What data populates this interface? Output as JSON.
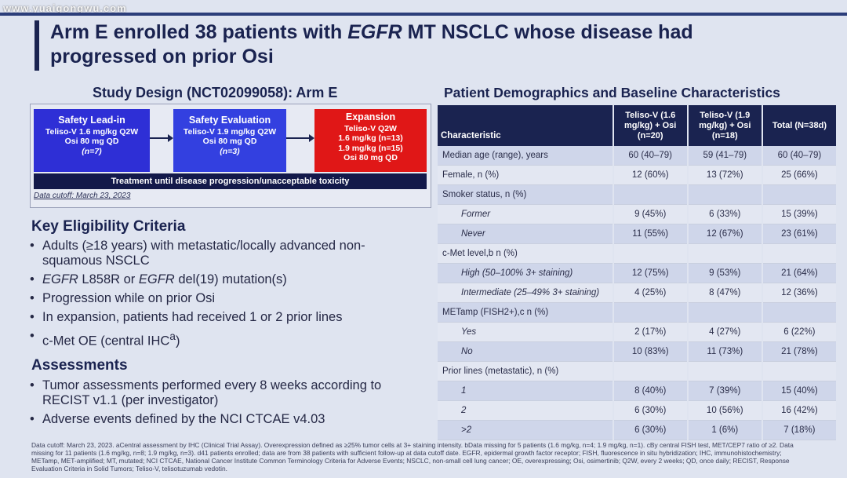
{
  "watermark": "www.yuaigongwu.com",
  "title": {
    "pre": "Arm E enrolled 38 patients with ",
    "gene": "EGFR",
    "post": " MT NSCLC whose disease had progressed on prior Osi"
  },
  "study_design": {
    "heading": "Study Design (NCT02099058): Arm E",
    "safety_lead_in": {
      "title": "Safety Lead-in",
      "line1": "Teliso-V 1.6 mg/kg Q2W",
      "line2": "Osi 80 mg QD",
      "n": "(n=7)"
    },
    "safety_evaluation": {
      "title": "Safety Evaluation",
      "line1": "Teliso-V 1.9 mg/kg Q2W",
      "line2": "Osi 80 mg QD",
      "n": "(n=3)"
    },
    "expansion": {
      "title": "Expansion",
      "line1": "Teliso-V Q2W",
      "line2": "1.6 mg/kg (n=13)",
      "line3": "1.9 mg/kg (n=15)",
      "line4": "Osi 80 mg QD"
    },
    "treatment_bar": "Treatment until disease progression/unacceptable toxicity",
    "data_cutoff": "Data cutoff: March 23, 2023",
    "colors": {
      "dark_navy": "#1a2350",
      "blue": "#2e2fd6",
      "red": "#e01717"
    }
  },
  "eligibility": {
    "heading": "Key Eligibility Criteria",
    "items": [
      {
        "text": "Adults (≥18 years) with metastatic/locally advanced non-squamous NSCLC"
      },
      {
        "g1": "EGFR",
        "t1": " L858R or ",
        "g2": "EGFR",
        "t2": " del(19) mutation(s)"
      },
      {
        "text": "Progression while on prior Osi"
      },
      {
        "text": "In expansion, patients had received 1 or 2 prior lines"
      },
      {
        "text": "c-Met OE (central IHC",
        "sup": "a",
        "close": ")"
      }
    ]
  },
  "assessments": {
    "heading": "Assessments",
    "items": [
      "Tumor assessments performed every 8 weeks according to RECIST v1.1 (per investigator)",
      "Adverse events defined by the NCI CTCAE v4.03"
    ]
  },
  "demographics": {
    "heading": "Patient Demographics and Baseline Characteristics",
    "columns": [
      "Characteristic",
      "Teliso-V (1.6 mg/kg) + Osi (n=20)",
      "Teliso-V (1.9 mg/kg) + Osi (n=18)",
      "Total (N=38d)"
    ],
    "rows": [
      {
        "label": "Median age (range), years",
        "sub": false,
        "v": [
          "60 (40–79)",
          "59 (41–79)",
          "60 (40–79)"
        ]
      },
      {
        "label": "Female, n (%)",
        "sub": false,
        "v": [
          "12 (60%)",
          "13 (72%)",
          "25 (66%)"
        ]
      },
      {
        "label": "Smoker status, n (%)",
        "sub": false,
        "v": [
          "",
          "",
          ""
        ]
      },
      {
        "label": "Former",
        "sub": true,
        "v": [
          "9 (45%)",
          "6 (33%)",
          "15 (39%)"
        ]
      },
      {
        "label": "Never",
        "sub": true,
        "v": [
          "11 (55%)",
          "12 (67%)",
          "23 (61%)"
        ]
      },
      {
        "label": "c-Met level,b n (%)",
        "sub": false,
        "v": [
          "",
          "",
          ""
        ]
      },
      {
        "label": "High (50–100% 3+ staining)",
        "sub": true,
        "v": [
          "12 (75%)",
          "9 (53%)",
          "21 (64%)"
        ]
      },
      {
        "label": "Intermediate (25–49% 3+ staining)",
        "sub": true,
        "v": [
          "4 (25%)",
          "8 (47%)",
          "12 (36%)"
        ]
      },
      {
        "label": "METamp (FISH2+),c n (%)",
        "sub": false,
        "v": [
          "",
          "",
          ""
        ]
      },
      {
        "label": "Yes",
        "sub": true,
        "v": [
          "2 (17%)",
          "4 (27%)",
          "6 (22%)"
        ]
      },
      {
        "label": "No",
        "sub": true,
        "v": [
          "10 (83%)",
          "11 (73%)",
          "21 (78%)"
        ]
      },
      {
        "label": "Prior lines (metastatic), n (%)",
        "sub": false,
        "v": [
          "",
          "",
          ""
        ]
      },
      {
        "label": "1",
        "sub": true,
        "v": [
          "8 (40%)",
          "7 (39%)",
          "15 (40%)"
        ]
      },
      {
        "label": "2",
        "sub": true,
        "v": [
          "6 (30%)",
          "10 (56%)",
          "16 (42%)"
        ]
      },
      {
        "label": ">2",
        "sub": true,
        "v": [
          "6 (30%)",
          "1 (6%)",
          "7 (18%)"
        ]
      }
    ]
  },
  "footnote": "Data cutoff: March 23, 2023. aCentral assessment by IHC (Clinical Trial Assay). Overexpression defined as ≥25% tumor cells at 3+ staining intensity. bData missing for 5 patients (1.6 mg/kg, n=4; 1.9 mg/kg, n=1). cBy central FISH test, MET/CEP7 ratio of ≥2. Data missing for 11 patients (1.6 mg/kg, n=8; 1.9 mg/kg, n=3). d41 patients enrolled; data are from 38 patients with sufficient follow-up at data cutoff date. EGFR, epidermal growth factor receptor; FISH, fluorescence in situ hybridization; IHC, immunohistochemistry; METamp, MET-amplified; MT, mutated; NCI CTCAE, National Cancer Institute Common Terminology Criteria for Adverse Events; NSCLC, non-small cell lung cancer; OE, overexpressing; Osi, osimertinib; Q2W, every 2 weeks; QD, once daily; RECIST, Response Evaluation Criteria in Solid Tumors; Teliso-V, telisotuzumab vedotin."
}
